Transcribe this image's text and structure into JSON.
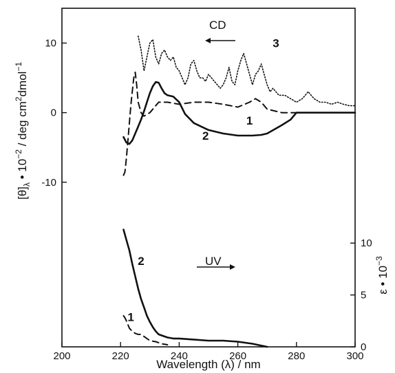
{
  "chart_data": {
    "type": "line",
    "xlabel": "Wavelength (λ) / nm",
    "x_ticks": [
      "200",
      "220",
      "240",
      "260",
      "280",
      "300"
    ],
    "xlim": [
      200,
      300
    ],
    "panels": [
      {
        "id": "cd",
        "ylabel": "[θ]λ • 10⁻² / deg cm²dmol⁻¹",
        "ylabel_parts": {
          "main": "[θ]",
          "sub": "λ",
          "mid": " • 10",
          "sup1": "−2",
          "unit": " / deg cm",
          "sup2": "2",
          "unit2": "dmol",
          "sup3": "−1"
        },
        "ylim": [
          -12,
          15
        ],
        "y_ticks": [
          "10",
          "0",
          "-10"
        ],
        "annotation": "CD",
        "annotation_arrow": "left",
        "series": [
          {
            "name": "1",
            "style": "dashed",
            "x": [
              221,
              221.5,
              222,
              222.5,
              223,
              223.5,
              224,
              224.5,
              225,
              225.5,
              226,
              227,
              228,
              230,
              233,
              236,
              240,
              245,
              250,
              255,
              260,
              264,
              266,
              268,
              270,
              275,
              280,
              285
            ],
            "y": [
              -9,
              -8.5,
              -6.5,
              -4.0,
              -1.5,
              1.0,
              3.0,
              5.0,
              5.8,
              4.0,
              1.5,
              0.0,
              -0.5,
              0.0,
              1.5,
              1.5,
              1.2,
              1.5,
              1.5,
              1.2,
              0.8,
              1.5,
              2.0,
              1.5,
              0.5,
              0.0,
              0.0,
              0.0
            ]
          },
          {
            "name": "2",
            "style": "solid",
            "x": [
              221,
              222,
              223,
              224,
              225,
              226,
              227,
              228,
              229,
              230,
              231,
              232,
              233,
              234,
              235,
              236,
              238,
              240,
              242,
              245,
              250,
              255,
              260,
              265,
              268,
              270,
              275,
              278,
              280,
              285,
              290,
              295,
              300
            ],
            "y": [
              -3.5,
              -4.3,
              -4.5,
              -4.0,
              -3.0,
              -2.0,
              -1.0,
              0.2,
              1.5,
              2.8,
              3.8,
              4.4,
              4.3,
              3.5,
              2.8,
              2.5,
              2.3,
              1.5,
              -0.2,
              -1.5,
              -2.5,
              -3.0,
              -3.3,
              -3.3,
              -3.2,
              -3.0,
              -1.8,
              -1.0,
              0.0,
              0.0,
              0.0,
              0.0,
              0.0
            ]
          },
          {
            "name": "3",
            "style": "dotted",
            "x": [
              226,
              227,
              228,
              229,
              230,
              231,
              232,
              233,
              234,
              235,
              236,
              237,
              238,
              239,
              240,
              241,
              242,
              243,
              244,
              245,
              246,
              247,
              248,
              249,
              250,
              251,
              252,
              253,
              254,
              255,
              256,
              257,
              258,
              259,
              260,
              261,
              262,
              263,
              264,
              265,
              266,
              267,
              268,
              269,
              270,
              271,
              272,
              274,
              276,
              278,
              280,
              282,
              283,
              284,
              285,
              286,
              288,
              290,
              292,
              294,
              296,
              298,
              300
            ],
            "y": [
              11,
              9,
              6,
              8,
              10,
              10.5,
              8,
              7,
              8.5,
              9,
              8,
              7.5,
              8,
              6.5,
              6,
              5,
              4,
              5,
              7,
              7.5,
              6,
              5,
              5,
              4.5,
              5.5,
              5,
              4.5,
              4,
              3.5,
              4,
              5,
              6.5,
              4.5,
              4,
              6,
              7.5,
              8.5,
              7,
              5.5,
              4,
              5.5,
              6,
              7,
              5.5,
              4,
              3,
              3.5,
              2.5,
              2.5,
              2,
              1.5,
              2,
              2.5,
              3,
              2.5,
              2,
              1.5,
              1.5,
              1.2,
              1.5,
              1.2,
              1,
              1
            ]
          }
        ],
        "curve_labels": [
          {
            "text": "1",
            "x": 264,
            "y": -1.7
          },
          {
            "text": "2",
            "x": 249,
            "y": -3.9
          },
          {
            "text": "3",
            "x": 273,
            "y": 9.4
          }
        ]
      },
      {
        "id": "uv",
        "ylabel": "ε • 10⁻³",
        "ylabel_parts": {
          "main": "ε • 10",
          "sup": "−3"
        },
        "ylim": [
          0,
          13
        ],
        "y_ticks": [
          "10",
          "5",
          "0"
        ],
        "annotation": "UV",
        "annotation_arrow": "right",
        "series": [
          {
            "name": "1",
            "style": "dashed",
            "x": [
              221,
              221.5,
              222,
              223,
              224,
              225,
              226,
              227,
              228,
              229,
              230,
              232,
              234,
              236
            ],
            "y": [
              3.0,
              2.8,
              2.5,
              1.8,
              1.5,
              1.3,
              1.2,
              1.2,
              1.0,
              0.8,
              0.6,
              0.5,
              0.3,
              0.2
            ]
          },
          {
            "name": "2",
            "style": "solid",
            "x": [
              221,
              222,
              223,
              224,
              225,
              226,
              227,
              228,
              229,
              230,
              231,
              232,
              233,
              234,
              235,
              236,
              238,
              240,
              245,
              250,
              255,
              260,
              265,
              270
            ],
            "y": [
              11.3,
              10.3,
              9.3,
              8.0,
              6.8,
              5.6,
              4.6,
              3.8,
              3.0,
              2.4,
              1.9,
              1.5,
              1.2,
              1.1,
              1.0,
              0.9,
              0.8,
              0.8,
              0.7,
              0.6,
              0.6,
              0.5,
              0.3,
              0.0
            ]
          }
        ],
        "curve_labels": [
          {
            "text": "1",
            "x": 223.5,
            "y": 2.5
          },
          {
            "text": "2",
            "x": 227,
            "y": 7.9
          }
        ]
      }
    ]
  }
}
